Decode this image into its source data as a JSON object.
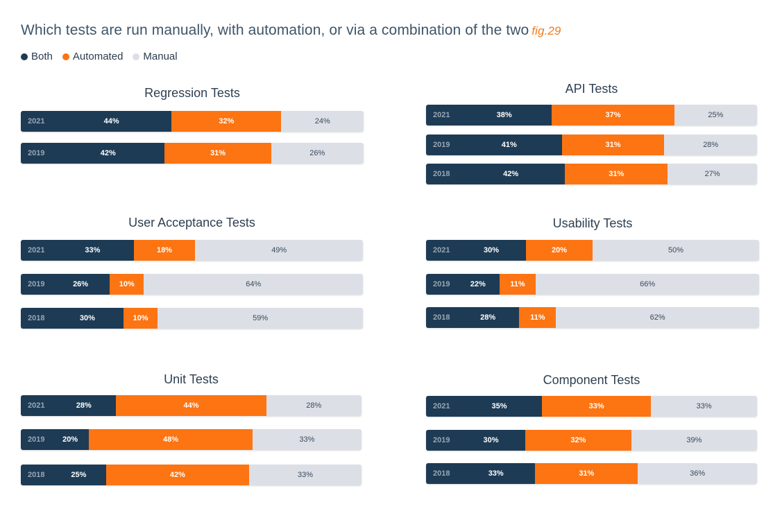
{
  "title": "Which tests are run manually, with automation, or via a combination of the two",
  "fig_label": "fig.29",
  "legend": [
    {
      "label": "Both",
      "color": "#1d3b55"
    },
    {
      "label": "Automated",
      "color": "#fd7412"
    },
    {
      "label": "Manual",
      "color": "#dcdfe6"
    }
  ],
  "chart_data": [
    {
      "type": "bar",
      "title": "Regression Tests",
      "categories": [
        "2021",
        "2019"
      ],
      "series": [
        {
          "name": "Both",
          "values": [
            44,
            42
          ]
        },
        {
          "name": "Automated",
          "values": [
            32,
            31
          ]
        },
        {
          "name": "Manual",
          "values": [
            24,
            26
          ]
        }
      ],
      "labels": [
        [
          "44%",
          "32%",
          "24%"
        ],
        [
          "42%",
          "31%",
          "26%"
        ]
      ]
    },
    {
      "type": "bar",
      "title": "API Tests",
      "categories": [
        "2021",
        "2019",
        "2018"
      ],
      "series": [
        {
          "name": "Both",
          "values": [
            38,
            41,
            42
          ]
        },
        {
          "name": "Automated",
          "values": [
            37,
            31,
            31
          ]
        },
        {
          "name": "Manual",
          "values": [
            25,
            28,
            27
          ]
        }
      ],
      "labels": [
        [
          "38%",
          "37%",
          "25%"
        ],
        [
          "41%",
          "31%",
          "28%"
        ],
        [
          "42%",
          "31%",
          "27%"
        ]
      ]
    },
    {
      "type": "bar",
      "title": "User Acceptance Tests",
      "categories": [
        "2021",
        "2019",
        "2018"
      ],
      "series": [
        {
          "name": "Both",
          "values": [
            33,
            26,
            30
          ]
        },
        {
          "name": "Automated",
          "values": [
            18,
            10,
            10
          ]
        },
        {
          "name": "Manual",
          "values": [
            49,
            64,
            59
          ]
        }
      ],
      "labels": [
        [
          "33%",
          "18%",
          "49%"
        ],
        [
          "26%",
          "10%",
          "64%"
        ],
        [
          "30%",
          "10%",
          "59%"
        ]
      ]
    },
    {
      "type": "bar",
      "title": "Usability Tests",
      "categories": [
        "2021",
        "2019",
        "2018"
      ],
      "series": [
        {
          "name": "Both",
          "values": [
            30,
            22,
            28
          ]
        },
        {
          "name": "Automated",
          "values": [
            20,
            11,
            11
          ]
        },
        {
          "name": "Manual",
          "values": [
            50,
            66,
            62
          ]
        }
      ],
      "labels": [
        [
          "30%",
          "20%",
          "50%"
        ],
        [
          "22%",
          "11%",
          "66%"
        ],
        [
          "28%",
          "11%",
          "62%"
        ]
      ]
    },
    {
      "type": "bar",
      "title": "Unit Tests",
      "categories": [
        "2021",
        "2019",
        "2018"
      ],
      "series": [
        {
          "name": "Both",
          "values": [
            28,
            20,
            25
          ]
        },
        {
          "name": "Automated",
          "values": [
            44,
            48,
            42
          ]
        },
        {
          "name": "Manual",
          "values": [
            28,
            33,
            33
          ]
        }
      ],
      "labels": [
        [
          "28%",
          "44%",
          "28%"
        ],
        [
          "20%",
          "48%",
          "33%"
        ],
        [
          "25%",
          "42%",
          "33%"
        ]
      ]
    },
    {
      "type": "bar",
      "title": "Component Tests",
      "categories": [
        "2021",
        "2019",
        "2018"
      ],
      "series": [
        {
          "name": "Both",
          "values": [
            35,
            30,
            33
          ]
        },
        {
          "name": "Automated",
          "values": [
            33,
            32,
            31
          ]
        },
        {
          "name": "Manual",
          "values": [
            33,
            39,
            36
          ]
        }
      ],
      "labels": [
        [
          "35%",
          "33%",
          "33%"
        ],
        [
          "30%",
          "32%",
          "39%"
        ],
        [
          "33%",
          "31%",
          "36%"
        ]
      ]
    }
  ]
}
